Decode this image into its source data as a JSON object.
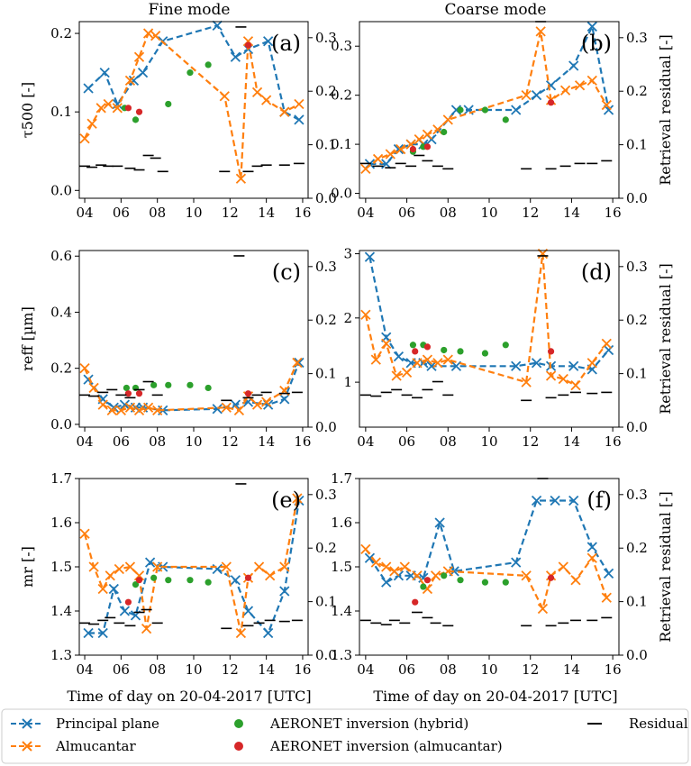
{
  "columns": [
    "Fine mode",
    "Coarse mode"
  ],
  "xlabel": "Time of day on 20-04-2017 [UTC]",
  "right_ylabel": "Retrieval residual [-]",
  "legend": {
    "pp": "Principal plane",
    "alm": "Almucantar",
    "hyb": "AERONET inversion (hybrid)",
    "aalm": "AERONET inversion (almucantar)",
    "res": "Residual"
  },
  "colors": {
    "pp": "#1f77b4",
    "alm": "#ff7f0e",
    "hyb": "#2ca02c",
    "aalm": "#d62728",
    "res": "#000000"
  },
  "chart_data": [
    {
      "type": "line",
      "label": "(a)",
      "ylabel": "τ500 [-]",
      "ylim": [
        -0.01,
        0.215
      ],
      "yticks": [
        0.0,
        0.1,
        0.2
      ],
      "ytick_labels": [
        "0.0",
        "0.1",
        "0.2"
      ],
      "y2lim": [
        0,
        0.33
      ],
      "y2ticks": [
        0.0,
        0.1,
        0.2,
        0.3
      ],
      "y2tick_labels": [
        "0.0",
        "0.1",
        "0.2",
        "0.3"
      ],
      "xlim": [
        3.7,
        16.3
      ],
      "xticks": [
        4,
        6,
        8,
        10,
        12,
        14,
        16
      ],
      "xtick_labels": [
        "04",
        "06",
        "08",
        "10",
        "12",
        "14",
        "16"
      ],
      "series": [
        {
          "key": "pp",
          "x": [
            4.2,
            5.1,
            5.8,
            6.7,
            7.2,
            8.3,
            11.3,
            12.3,
            13.0,
            14.1,
            15.0,
            15.8
          ],
          "y": [
            0.13,
            0.15,
            0.11,
            0.14,
            0.15,
            0.19,
            0.21,
            0.17,
            0.18,
            0.19,
            0.1,
            0.09
          ]
        },
        {
          "key": "alm",
          "x": [
            4.0,
            4.4,
            4.9,
            5.3,
            5.8,
            6.5,
            7.0,
            7.5,
            7.9,
            11.7,
            12.6,
            13.0,
            13.5,
            14.0,
            15.0,
            15.8
          ],
          "y": [
            0.066,
            0.085,
            0.105,
            0.11,
            0.105,
            0.14,
            0.17,
            0.2,
            0.197,
            0.12,
            0.015,
            0.19,
            0.125,
            0.115,
            0.1,
            0.11
          ]
        },
        {
          "key": "hyb",
          "x": [
            6.2,
            6.8,
            8.6,
            9.8,
            10.8
          ],
          "y": [
            0.105,
            0.09,
            0.11,
            0.15,
            0.16
          ]
        },
        {
          "key": "aalm",
          "x": [
            6.4,
            7.0,
            13.0
          ],
          "y": [
            0.105,
            0.1,
            0.185
          ]
        },
        {
          "key": "res",
          "x": [
            4.0,
            4.4,
            4.9,
            5.3,
            5.8,
            6.5,
            7.0,
            7.5,
            7.9,
            8.3,
            11.7,
            12.6,
            13.0,
            13.5,
            14.0,
            15.0,
            15.8
          ],
          "y": [
            0.06,
            0.058,
            0.062,
            0.06,
            0.06,
            0.056,
            0.053,
            0.08,
            0.075,
            0.05,
            0.05,
            0.32,
            0.05,
            0.06,
            0.062,
            0.062,
            0.065
          ]
        }
      ]
    },
    {
      "type": "line",
      "label": "(b)",
      "ylabel": "",
      "ylim": [
        -0.01,
        0.35
      ],
      "yticks": [
        0.0,
        0.1,
        0.2,
        0.3
      ],
      "ytick_labels": [
        "0.0",
        "0.1",
        "0.2",
        "0.3"
      ],
      "y2lim": [
        0,
        0.33
      ],
      "y2ticks": [
        0.0,
        0.1,
        0.2,
        0.3
      ],
      "y2tick_labels": [
        "0.0",
        "0.1",
        "0.2",
        "0.3"
      ],
      "xlim": [
        3.7,
        16.3
      ],
      "xticks": [
        4,
        6,
        8,
        10,
        12,
        14,
        16
      ],
      "xtick_labels": [
        "04",
        "06",
        "08",
        "10",
        "12",
        "14",
        "16"
      ],
      "series": [
        {
          "key": "pp",
          "x": [
            4.2,
            5.0,
            5.6,
            6.2,
            6.8,
            7.2,
            8.4,
            9.0,
            11.3,
            12.3,
            13.0,
            14.1,
            15.0,
            15.8
          ],
          "y": [
            0.06,
            0.06,
            0.09,
            0.1,
            0.1,
            0.11,
            0.17,
            0.17,
            0.17,
            0.2,
            0.22,
            0.26,
            0.34,
            0.17
          ]
        },
        {
          "key": "alm",
          "x": [
            4.0,
            4.6,
            5.2,
            5.7,
            6.2,
            6.6,
            7.0,
            7.5,
            8.0,
            11.8,
            12.5,
            13.0,
            13.7,
            14.4,
            15.0,
            15.7
          ],
          "y": [
            0.05,
            0.07,
            0.08,
            0.09,
            0.1,
            0.11,
            0.12,
            0.13,
            0.15,
            0.2,
            0.33,
            0.19,
            0.21,
            0.22,
            0.23,
            0.18
          ]
        },
        {
          "key": "hyb",
          "x": [
            6.3,
            6.8,
            7.8,
            8.6,
            9.8,
            10.8
          ],
          "y": [
            0.085,
            0.095,
            0.125,
            0.17,
            0.17,
            0.15
          ]
        },
        {
          "key": "aalm",
          "x": [
            6.3,
            7.0,
            13.0
          ],
          "y": [
            0.09,
            0.095,
            0.185
          ]
        },
        {
          "key": "res",
          "x": [
            4.0,
            4.6,
            5.2,
            5.7,
            6.2,
            6.6,
            7.0,
            7.5,
            8.0,
            11.8,
            12.5,
            13.0,
            13.7,
            14.4,
            15.0,
            15.7
          ],
          "y": [
            0.065,
            0.06,
            0.057,
            0.065,
            0.06,
            0.08,
            0.07,
            0.06,
            0.055,
            0.055,
            0.33,
            0.055,
            0.06,
            0.065,
            0.065,
            0.07
          ]
        }
      ]
    },
    {
      "type": "line",
      "label": "(c)",
      "ylabel": "reff [µm]",
      "ylim": [
        -0.01,
        0.62
      ],
      "yticks": [
        0.0,
        0.2,
        0.4,
        0.6
      ],
      "ytick_labels": [
        "0.0",
        "0.2",
        "0.4",
        "0.6"
      ],
      "y2lim": [
        0,
        0.33
      ],
      "y2ticks": [
        0.0,
        0.1,
        0.2,
        0.3
      ],
      "y2tick_labels": [
        "0.0",
        "0.1",
        "0.2",
        "0.3"
      ],
      "xlim": [
        3.7,
        16.3
      ],
      "xticks": [
        4,
        6,
        8,
        10,
        12,
        14,
        16
      ],
      "xtick_labels": [
        "04",
        "06",
        "08",
        "10",
        "12",
        "14",
        "16"
      ],
      "series": [
        {
          "key": "pp",
          "x": [
            4.2,
            5.0,
            5.6,
            6.2,
            6.8,
            7.2,
            8.3,
            11.3,
            12.3,
            13.0,
            14.1,
            15.0,
            15.8
          ],
          "y": [
            0.16,
            0.09,
            0.06,
            0.07,
            0.06,
            0.06,
            0.05,
            0.055,
            0.07,
            0.08,
            0.07,
            0.09,
            0.22
          ]
        },
        {
          "key": "alm",
          "x": [
            4.0,
            4.5,
            5.0,
            5.5,
            6.0,
            6.5,
            7.0,
            7.5,
            8.0,
            11.8,
            12.5,
            13.0,
            13.5,
            14.0,
            15.0,
            15.7
          ],
          "y": [
            0.2,
            0.13,
            0.07,
            0.05,
            0.05,
            0.06,
            0.05,
            0.06,
            0.05,
            0.06,
            0.05,
            0.1,
            0.07,
            0.08,
            0.12,
            0.22
          ]
        },
        {
          "key": "hyb",
          "x": [
            6.3,
            6.8,
            7.8,
            8.6,
            9.8,
            10.8
          ],
          "y": [
            0.13,
            0.13,
            0.14,
            0.14,
            0.14,
            0.13
          ]
        },
        {
          "key": "aalm",
          "x": [
            6.4,
            7.0,
            13.0
          ],
          "y": [
            0.11,
            0.11,
            0.11
          ]
        },
        {
          "key": "res",
          "x": [
            4.0,
            4.5,
            5.0,
            5.5,
            6.0,
            6.5,
            7.0,
            7.5,
            8.0,
            11.8,
            12.5,
            13.0,
            13.5,
            14.0,
            15.0,
            15.7
          ],
          "y": [
            0.06,
            0.058,
            0.065,
            0.07,
            0.06,
            0.055,
            0.07,
            0.085,
            0.06,
            0.05,
            0.32,
            0.055,
            0.06,
            0.065,
            0.063,
            0.065
          ]
        }
      ]
    },
    {
      "type": "line",
      "label": "(d)",
      "ylabel": "",
      "ylim": [
        0.3,
        3.05
      ],
      "yticks": [
        1,
        2,
        3
      ],
      "ytick_labels": [
        "1",
        "2",
        "3"
      ],
      "y2lim": [
        0,
        0.33
      ],
      "y2ticks": [
        0.0,
        0.1,
        0.2,
        0.3
      ],
      "y2tick_labels": [
        "0.0",
        "0.1",
        "0.2",
        "0.3"
      ],
      "xlim": [
        3.7,
        16.3
      ],
      "xticks": [
        4,
        6,
        8,
        10,
        12,
        14,
        16
      ],
      "xtick_labels": [
        "04",
        "06",
        "08",
        "10",
        "12",
        "14",
        "16"
      ],
      "series": [
        {
          "key": "pp",
          "x": [
            4.2,
            5.0,
            5.6,
            6.2,
            6.8,
            7.2,
            8.4,
            11.3,
            12.3,
            13.0,
            14.1,
            15.0,
            15.8
          ],
          "y": [
            2.95,
            1.7,
            1.4,
            1.3,
            1.3,
            1.25,
            1.25,
            1.25,
            1.3,
            1.25,
            1.25,
            1.2,
            1.5
          ]
        },
        {
          "key": "alm",
          "x": [
            4.0,
            4.5,
            5.0,
            5.5,
            6.0,
            6.5,
            7.0,
            7.5,
            8.0,
            11.8,
            12.6,
            13.0,
            13.6,
            14.2,
            15.0,
            15.7
          ],
          "y": [
            2.05,
            1.35,
            1.6,
            1.1,
            1.15,
            1.3,
            1.35,
            1.3,
            1.35,
            1.0,
            3.0,
            1.1,
            1.05,
            0.95,
            1.3,
            1.6
          ]
        },
        {
          "key": "hyb",
          "x": [
            6.3,
            6.8,
            7.8,
            8.6,
            9.8,
            10.8
          ],
          "y": [
            1.58,
            1.58,
            1.5,
            1.48,
            1.45,
            1.58
          ]
        },
        {
          "key": "aalm",
          "x": [
            6.4,
            7.0,
            13.0
          ],
          "y": [
            1.48,
            1.55,
            1.48
          ]
        },
        {
          "key": "res",
          "x": [
            4.0,
            4.5,
            5.0,
            5.5,
            6.0,
            6.5,
            7.0,
            7.5,
            8.0,
            11.8,
            12.6,
            13.0,
            13.6,
            14.2,
            15.0,
            15.7
          ],
          "y": [
            0.06,
            0.058,
            0.065,
            0.07,
            0.06,
            0.055,
            0.07,
            0.085,
            0.06,
            0.05,
            0.32,
            0.055,
            0.06,
            0.065,
            0.063,
            0.065
          ]
        }
      ]
    },
    {
      "type": "line",
      "label": "(e)",
      "ylabel": "mr [-]",
      "ylim": [
        1.3,
        1.7
      ],
      "yticks": [
        1.3,
        1.4,
        1.5,
        1.6,
        1.7
      ],
      "ytick_labels": [
        "1.3",
        "1.4",
        "1.5",
        "1.6",
        "1.7"
      ],
      "y2lim": [
        0,
        0.33
      ],
      "y2ticks": [
        0.0,
        0.1,
        0.2,
        0.3
      ],
      "y2tick_labels": [
        "0.0",
        "0.1",
        "0.2",
        "0.3"
      ],
      "xlim": [
        3.7,
        16.3
      ],
      "xticks": [
        4,
        6,
        8,
        10,
        12,
        14,
        16
      ],
      "xtick_labels": [
        "04",
        "06",
        "08",
        "10",
        "12",
        "14",
        "16"
      ],
      "series": [
        {
          "key": "pp",
          "x": [
            4.2,
            5.0,
            5.6,
            6.2,
            6.8,
            7.6,
            8.3,
            11.3,
            12.3,
            13.0,
            14.1,
            15.0,
            15.8
          ],
          "y": [
            1.35,
            1.35,
            1.45,
            1.4,
            1.39,
            1.51,
            1.5,
            1.495,
            1.47,
            1.4,
            1.35,
            1.445,
            1.65
          ]
        },
        {
          "key": "alm",
          "x": [
            4.0,
            4.5,
            5.0,
            5.4,
            5.9,
            6.5,
            7.0,
            7.4,
            8.0,
            11.8,
            12.6,
            13.0,
            13.6,
            14.2,
            15.0,
            15.7
          ],
          "y": [
            1.575,
            1.5,
            1.45,
            1.48,
            1.495,
            1.5,
            1.48,
            1.36,
            1.5,
            1.5,
            1.35,
            1.475,
            1.5,
            1.48,
            1.5,
            1.655
          ]
        },
        {
          "key": "hyb",
          "x": [
            6.8,
            7.8,
            8.6,
            9.8,
            10.8
          ],
          "y": [
            1.46,
            1.475,
            1.47,
            1.47,
            1.465
          ]
        },
        {
          "key": "aalm",
          "x": [
            6.4,
            7.0,
            13.0
          ],
          "y": [
            1.42,
            1.47,
            1.475
          ]
        },
        {
          "key": "res",
          "x": [
            4.0,
            4.5,
            5.0,
            5.4,
            5.9,
            6.5,
            7.0,
            7.4,
            8.0,
            11.8,
            12.6,
            13.0,
            13.6,
            14.2,
            15.0,
            15.7
          ],
          "y": [
            0.06,
            0.058,
            0.065,
            0.07,
            0.06,
            0.055,
            0.08,
            0.085,
            0.06,
            0.05,
            0.32,
            0.055,
            0.06,
            0.065,
            0.063,
            0.065
          ]
        }
      ]
    },
    {
      "type": "line",
      "label": "(f)",
      "ylabel": "",
      "ylim": [
        1.3,
        1.7
      ],
      "yticks": [
        1.3,
        1.4,
        1.5,
        1.6,
        1.7
      ],
      "ytick_labels": [
        "1.3",
        "1.4",
        "1.5",
        "1.6",
        "1.7"
      ],
      "y2lim": [
        0,
        0.33
      ],
      "y2ticks": [
        0.0,
        0.1,
        0.2,
        0.3
      ],
      "y2tick_labels": [
        "0.0",
        "0.1",
        "0.2",
        "0.3"
      ],
      "xlim": [
        3.7,
        16.3
      ],
      "xticks": [
        4,
        6,
        8,
        10,
        12,
        14,
        16
      ],
      "xtick_labels": [
        "04",
        "06",
        "08",
        "10",
        "12",
        "14",
        "16"
      ],
      "series": [
        {
          "key": "pp",
          "x": [
            4.2,
            5.0,
            5.6,
            6.2,
            6.8,
            7.6,
            8.3,
            11.3,
            12.3,
            13.2,
            14.1,
            15.0,
            15.8
          ],
          "y": [
            1.52,
            1.465,
            1.48,
            1.48,
            1.475,
            1.6,
            1.49,
            1.51,
            1.65,
            1.65,
            1.65,
            1.545,
            1.485
          ]
        },
        {
          "key": "alm",
          "x": [
            4.0,
            4.5,
            5.0,
            5.4,
            5.9,
            6.5,
            7.0,
            7.4,
            8.0,
            11.8,
            12.6,
            13.0,
            13.6,
            14.2,
            15.0,
            15.7
          ],
          "y": [
            1.54,
            1.51,
            1.5,
            1.49,
            1.5,
            1.48,
            1.45,
            1.48,
            1.49,
            1.48,
            1.405,
            1.48,
            1.5,
            1.47,
            1.52,
            1.43
          ]
        },
        {
          "key": "hyb",
          "x": [
            6.8,
            7.8,
            8.6,
            9.8,
            10.8
          ],
          "y": [
            1.455,
            1.48,
            1.47,
            1.465,
            1.465
          ]
        },
        {
          "key": "aalm",
          "x": [
            6.4,
            7.0,
            13.0
          ],
          "y": [
            1.42,
            1.47,
            1.475
          ]
        },
        {
          "key": "res",
          "x": [
            4.0,
            4.5,
            5.0,
            5.4,
            5.9,
            6.5,
            7.0,
            7.4,
            8.0,
            11.8,
            12.6,
            13.0,
            13.6,
            14.2,
            15.0,
            15.7
          ],
          "y": [
            0.065,
            0.06,
            0.057,
            0.065,
            0.06,
            0.08,
            0.07,
            0.06,
            0.055,
            0.055,
            0.33,
            0.055,
            0.06,
            0.065,
            0.065,
            0.07
          ]
        }
      ]
    }
  ]
}
